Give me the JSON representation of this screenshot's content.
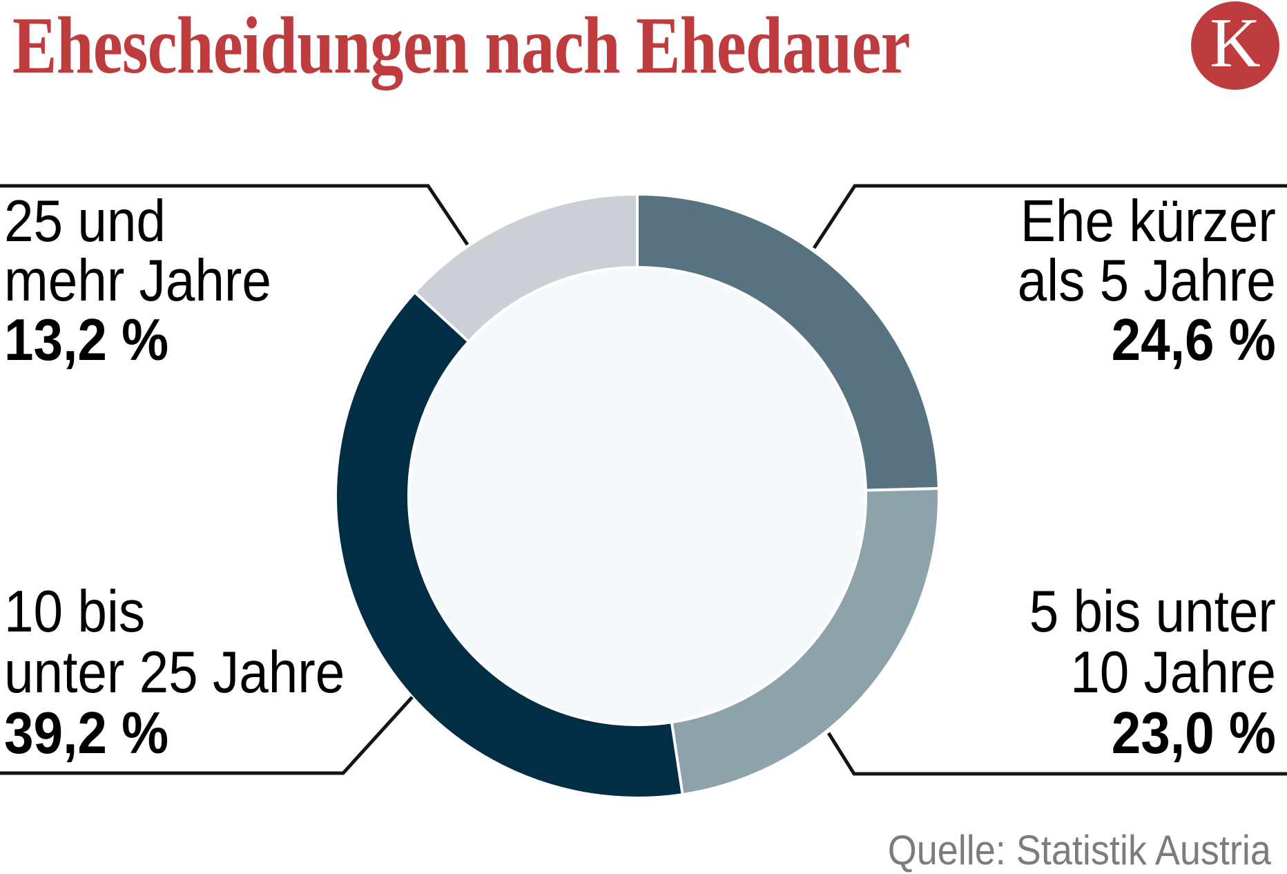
{
  "header": {
    "title": "Ehescheidungen nach Ehedauer",
    "logo_letter": "K"
  },
  "source": {
    "label": "Quelle: Statistik Austria"
  },
  "colors": {
    "title_red": "#be3c3e",
    "logo_red": "#be3c3e",
    "leader_line": "#141414",
    "label_text": "#000000",
    "source_gray": "#7c7c7a",
    "donut_hole": "#f5f9fb",
    "background": "#ffffff"
  },
  "chart_data": {
    "type": "pie",
    "subtype": "donut",
    "title": "Ehescheidungen nach Ehedauer",
    "start_angle_deg": 0,
    "clockwise": true,
    "legend_position": "callout-labels",
    "segments": [
      {
        "label": "Ehe kürzer als 5 Jahre",
        "label_lines": [
          "Ehe kürzer",
          "als 5 Jahre"
        ],
        "value": 24.6,
        "value_label": "24,6 %",
        "color": "#56737f",
        "callout": "top-right"
      },
      {
        "label": "5 bis unter 10 Jahre",
        "label_lines": [
          "5 bis unter",
          "10 Jahre"
        ],
        "value": 23.0,
        "value_label": "23,0 %",
        "color": "#8da2ab",
        "callout": "bottom-right"
      },
      {
        "label": "10 bis unter 25 Jahre",
        "label_lines": [
          "10 bis",
          "unter 25 Jahre"
        ],
        "value": 39.2,
        "value_label": "39,2 %",
        "color": "#022e45",
        "callout": "bottom-left"
      },
      {
        "label": "25 und mehr Jahre",
        "label_lines": [
          "25 und",
          "mehr Jahre"
        ],
        "value": 13.2,
        "value_label": "13,2 %",
        "color": "#cad0d6",
        "callout": "top-left"
      }
    ]
  }
}
